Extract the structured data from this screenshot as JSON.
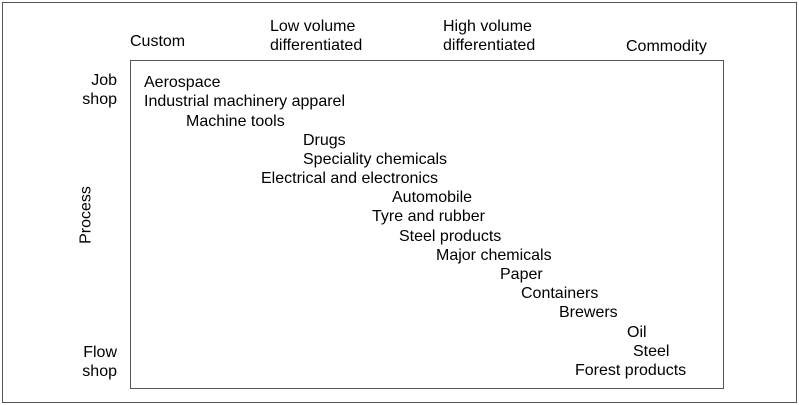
{
  "columns": {
    "custom": "Custom",
    "low_volume": [
      "Low volume",
      "differentiated"
    ],
    "high_volume": [
      "High volume",
      "differentiated"
    ],
    "commodity": "Commodity"
  },
  "rows": {
    "job_shop": [
      "Job",
      "shop"
    ],
    "flow_shop": [
      "Flow",
      "shop"
    ]
  },
  "axis_label": "Process",
  "industries": [
    "Aerospace",
    "Industrial machinery apparel",
    "Machine tools",
    "Drugs",
    "Speciality chemicals",
    "Electrical and electronics",
    "Automobile",
    "Tyre and rubber",
    "Steel products",
    "Major chemicals",
    "Paper",
    "Containers",
    "Brewers",
    "Oil",
    "Steel",
    "Forest products"
  ]
}
